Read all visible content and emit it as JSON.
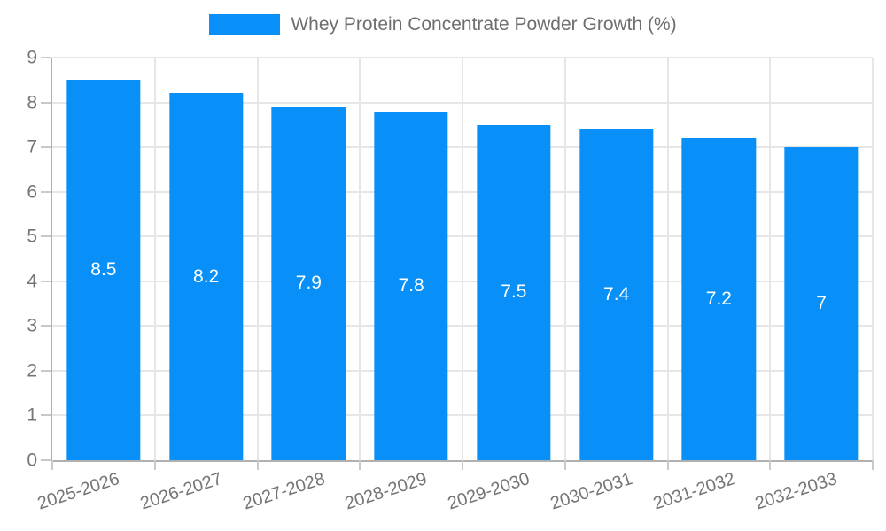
{
  "legend": {
    "label": "Whey Protein Concentrate Powder Growth (%)"
  },
  "chart_data": {
    "type": "bar",
    "title": "Whey Protein Concentrate Powder Growth (%)",
    "categories": [
      "2025-2026",
      "2026-2027",
      "2027-2028",
      "2028-2029",
      "2029-2030",
      "2030-2031",
      "2031-2032",
      "2032-2033"
    ],
    "values": [
      8.5,
      8.2,
      7.9,
      7.8,
      7.5,
      7.4,
      7.2,
      7
    ],
    "bar_labels": [
      "8.5",
      "8.2",
      "7.9",
      "7.8",
      "7.5",
      "7.4",
      "7.2",
      "7"
    ],
    "xlabel": "",
    "ylabel": "",
    "ylim": [
      0,
      9
    ],
    "ytick_step": 1,
    "ytick_labels": [
      "0",
      "1",
      "2",
      "3",
      "4",
      "5",
      "6",
      "7",
      "8",
      "9"
    ],
    "grid": true,
    "legend_position": "top-center",
    "x_label_rotation_deg": -18,
    "colors": {
      "bar": "#0890f8",
      "bar_label": "#ffffff",
      "axis_text": "#757575",
      "legend_text": "#6e6e6e",
      "gridline": "#e6e6e6",
      "axis_line": "#b0b0b0",
      "tick": "#c9c9c9",
      "background": "#ffffff"
    }
  }
}
